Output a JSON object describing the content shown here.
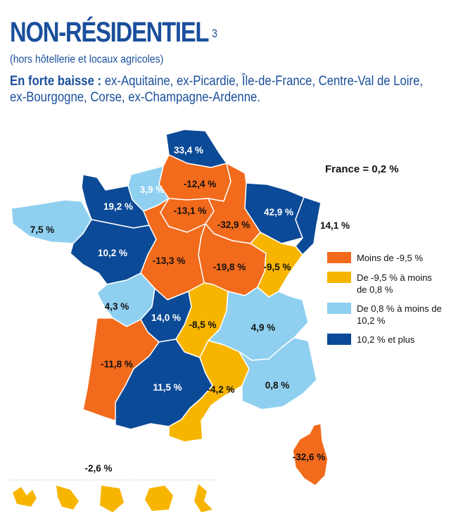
{
  "header": {
    "title": "NON-RÉSIDENTIEL",
    "footnote_mark": "3",
    "subtitle": "(hors hôtellerie et locaux agricoles)",
    "highlight_lead": "En forte baisse :",
    "highlight_text": " ex-Aquitaine, ex-Picardie, Île-de-France, Centre-Val de Loire, ex-Bourgogne, Corse, ex-Champagne-Ardenne."
  },
  "france_total": "France = 0,2 %",
  "legend": [
    {
      "label": "Moins de -9,5 %",
      "color": "#f26a1b"
    },
    {
      "label": "De -9,5 % à moins de 0,8 %",
      "color": "#f7b500"
    },
    {
      "label": "De 0,8 % à moins de 10,2 %",
      "color": "#8fd0f0"
    },
    {
      "label": "10,2 % et plus",
      "color": "#0b4a96"
    }
  ],
  "regions": [
    {
      "id": "nord-pas-de-calais",
      "value": "33,4 %",
      "class": 3
    },
    {
      "id": "picardie",
      "value": "-12,4 %",
      "class": 0
    },
    {
      "id": "haute-normandie",
      "value": "3,9 %",
      "class": 2
    },
    {
      "id": "basse-normandie",
      "value": "19,2 %",
      "class": 3
    },
    {
      "id": "bretagne",
      "value": "7,5 %",
      "class": 2
    },
    {
      "id": "ile-de-france",
      "value": "-13,1 %",
      "class": 0
    },
    {
      "id": "champagne-ardenne",
      "value": "-32,9 %",
      "class": 0
    },
    {
      "id": "lorraine",
      "value": "42,9 %",
      "class": 3
    },
    {
      "id": "alsace",
      "value": "14,1 %",
      "class": 3
    },
    {
      "id": "pays-de-la-loire",
      "value": "10,2 %",
      "class": 3
    },
    {
      "id": "centre-val-de-loire",
      "value": "-13,3 %",
      "class": 0
    },
    {
      "id": "bourgogne",
      "value": "-19,8 %",
      "class": 0
    },
    {
      "id": "franche-comte",
      "value": "-9,5 %",
      "class": 1
    },
    {
      "id": "poitou-charentes",
      "value": "4,3 %",
      "class": 2
    },
    {
      "id": "limousin",
      "value": "14,0 %",
      "class": 3
    },
    {
      "id": "auvergne",
      "value": "-8,5 %",
      "class": 1
    },
    {
      "id": "rhone-alpes",
      "value": "4,9 %",
      "class": 2
    },
    {
      "id": "aquitaine",
      "value": "-11,8 %",
      "class": 0
    },
    {
      "id": "midi-pyrenees",
      "value": "11,5 %",
      "class": 3
    },
    {
      "id": "languedoc-roussillon",
      "value": "-4,2 %",
      "class": 1
    },
    {
      "id": "provence-alpes-cote-dazur",
      "value": "0,8 %",
      "class": 2
    },
    {
      "id": "corse",
      "value": "-32,6 %",
      "class": 0
    }
  ],
  "overseas": {
    "value": "-2,6 %",
    "class": 1
  }
}
